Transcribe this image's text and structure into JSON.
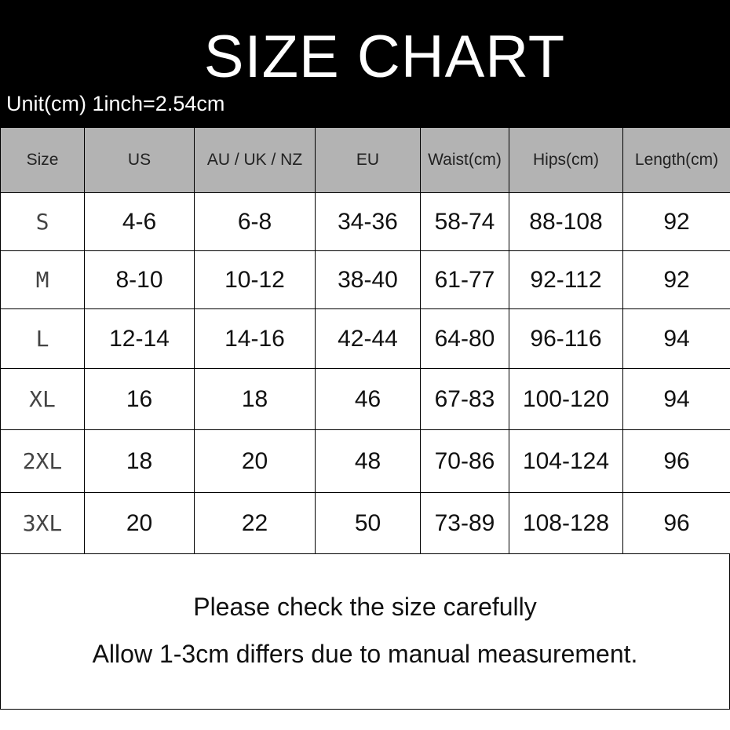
{
  "header": {
    "title": "SIZE CHART",
    "unit_note": "Unit(cm)  1inch=2.54cm"
  },
  "table": {
    "columns": [
      "Size",
      "US",
      "AU / UK / NZ",
      "EU",
      "Waist(cm)",
      "Hips(cm)",
      "Length(cm)"
    ],
    "rows": [
      [
        "S",
        "4-6",
        "6-8",
        "34-36",
        "58-74",
        "88-108",
        "92"
      ],
      [
        "M",
        "8-10",
        "10-12",
        "38-40",
        "61-77",
        "92-112",
        "92"
      ],
      [
        "L",
        "12-14",
        "14-16",
        "42-44",
        "64-80",
        "96-116",
        "94"
      ],
      [
        "XL",
        "16",
        "18",
        "46",
        "67-83",
        "100-120",
        "94"
      ],
      [
        "2XL",
        "18",
        "20",
        "48",
        "70-86",
        "104-124",
        "96"
      ],
      [
        "3XL",
        "20",
        "22",
        "50",
        "73-89",
        "108-128",
        "96"
      ]
    ]
  },
  "footer": {
    "line1": "Please check the size carefully",
    "line2": "Allow 1-3cm differs due to manual measurement."
  },
  "colors": {
    "banner": "#000000",
    "header_row": "#b3b3b3"
  }
}
